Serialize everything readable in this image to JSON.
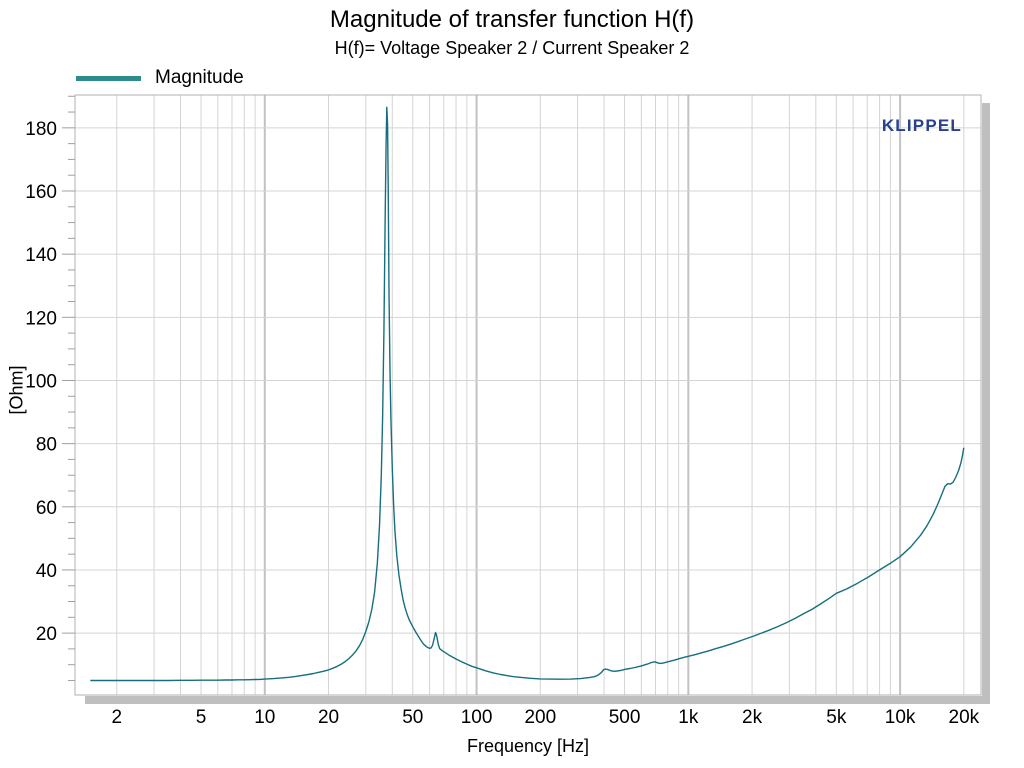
{
  "title": "Magnitude of transfer function H(f)",
  "subtitle": "H(f)= Voltage Speaker 2 / Current Speaker 2",
  "watermark": "KLIPPEL",
  "legend": [
    {
      "label": "Magnitude",
      "color": "#2e8b8b"
    }
  ],
  "colors": {
    "series": "#176f7e",
    "legend_swatch": "#2e8b8b",
    "grid_minor": "#d4d4d4",
    "grid_major": "#c2c2c2",
    "frame": "#b0b0b0",
    "tick": "#a0a0a0",
    "shadow": "#bfbfbf",
    "watermark": "#27418c",
    "text": "#000000",
    "background": "#ffffff"
  },
  "chart_data": {
    "type": "line",
    "title": "Magnitude of transfer function H(f)",
    "subtitle": "H(f)= Voltage Speaker 2 / Current Speaker 2",
    "xlabel": "Frequency [Hz]",
    "ylabel": "[Ohm]",
    "x_scale": "log",
    "grid": true,
    "legend_position": "top-left",
    "xlim": [
      1.27,
      24100
    ],
    "ylim": [
      0.4,
      190.4
    ],
    "x_ticks": [
      {
        "f": 2,
        "label": "2"
      },
      {
        "f": 5,
        "label": "5"
      },
      {
        "f": 10,
        "label": "10"
      },
      {
        "f": 20,
        "label": "20"
      },
      {
        "f": 50,
        "label": "50"
      },
      {
        "f": 100,
        "label": "100"
      },
      {
        "f": 200,
        "label": "200"
      },
      {
        "f": 500,
        "label": "500"
      },
      {
        "f": 1000,
        "label": "1k"
      },
      {
        "f": 2000,
        "label": "2k"
      },
      {
        "f": 5000,
        "label": "5k"
      },
      {
        "f": 10000,
        "label": "10k"
      },
      {
        "f": 20000,
        "label": "20k"
      }
    ],
    "y_ticks": [
      20,
      40,
      60,
      80,
      100,
      120,
      140,
      160,
      180
    ],
    "y_minor_step": 5,
    "series": [
      {
        "name": "Magnitude",
        "color": "#176f7e",
        "peak": {
          "frequency_hz": 37.7,
          "magnitude_ohm": 186.5
        },
        "points": [
          [
            1.5,
            5
          ],
          [
            2,
            5
          ],
          [
            2.5,
            5
          ],
          [
            3,
            5
          ],
          [
            3.5,
            5
          ],
          [
            4,
            5.05
          ],
          [
            4.5,
            5.05
          ],
          [
            5,
            5.1
          ],
          [
            5.5,
            5.1
          ],
          [
            6,
            5.1
          ],
          [
            6.5,
            5.15
          ],
          [
            7,
            5.15
          ],
          [
            7.5,
            5.2
          ],
          [
            8,
            5.2
          ],
          [
            8.5,
            5.25
          ],
          [
            9,
            5.3
          ],
          [
            9.5,
            5.35
          ],
          [
            10,
            5.45
          ],
          [
            11,
            5.6
          ],
          [
            12,
            5.8
          ],
          [
            13,
            6
          ],
          [
            14,
            6.3
          ],
          [
            15,
            6.6
          ],
          [
            16,
            6.9
          ],
          [
            17,
            7.2
          ],
          [
            18,
            7.6
          ],
          [
            19,
            7.95
          ],
          [
            20,
            8.35
          ],
          [
            21,
            8.9
          ],
          [
            22,
            9.5
          ],
          [
            23,
            10.2
          ],
          [
            24,
            11
          ],
          [
            25,
            12
          ],
          [
            26,
            13.1
          ],
          [
            27,
            14.4
          ],
          [
            28,
            16
          ],
          [
            29,
            18
          ],
          [
            30,
            20.5
          ],
          [
            31,
            23.5
          ],
          [
            32,
            27.5
          ],
          [
            33,
            33
          ],
          [
            34,
            42
          ],
          [
            34.8,
            54
          ],
          [
            35.5,
            70
          ],
          [
            36,
            88
          ],
          [
            36.5,
            115
          ],
          [
            37,
            150
          ],
          [
            37.4,
            175
          ],
          [
            37.7,
            186.5
          ],
          [
            38,
            181
          ],
          [
            38.3,
            158
          ],
          [
            38.6,
            128
          ],
          [
            39,
            103
          ],
          [
            39.4,
            88
          ],
          [
            40,
            72
          ],
          [
            40.6,
            60
          ],
          [
            41.2,
            52
          ],
          [
            42,
            44.5
          ],
          [
            43,
            38.5
          ],
          [
            44,
            34
          ],
          [
            45,
            30.5
          ],
          [
            46,
            28
          ],
          [
            47,
            26
          ],
          [
            48,
            24.3
          ],
          [
            49,
            23.1
          ],
          [
            50,
            22
          ],
          [
            52,
            20
          ],
          [
            54,
            18.2
          ],
          [
            56,
            16.6
          ],
          [
            58,
            15.7
          ],
          [
            59,
            15.4
          ],
          [
            60,
            15.2
          ],
          [
            61,
            15.3
          ],
          [
            62,
            16.2
          ],
          [
            63,
            18.2
          ],
          [
            64,
            20.2
          ],
          [
            64.5,
            19.7
          ],
          [
            65,
            18.8
          ],
          [
            66,
            16.4
          ],
          [
            67,
            15.1
          ],
          [
            68,
            14.7
          ],
          [
            70,
            14.1
          ],
          [
            72,
            13.6
          ],
          [
            75,
            12.8
          ],
          [
            80,
            11.8
          ],
          [
            85,
            10.9
          ],
          [
            90,
            10.2
          ],
          [
            95,
            9.5
          ],
          [
            100,
            9
          ],
          [
            110,
            8.1
          ],
          [
            120,
            7.4
          ],
          [
            130,
            6.9
          ],
          [
            140,
            6.5
          ],
          [
            150,
            6.2
          ],
          [
            165,
            5.9
          ],
          [
            180,
            5.7
          ],
          [
            200,
            5.5
          ],
          [
            220,
            5.45
          ],
          [
            250,
            5.4
          ],
          [
            280,
            5.45
          ],
          [
            310,
            5.6
          ],
          [
            340,
            5.9
          ],
          [
            360,
            6.2
          ],
          [
            375,
            6.7
          ],
          [
            388,
            7.5
          ],
          [
            398,
            8.4
          ],
          [
            405,
            8.6
          ],
          [
            415,
            8.5
          ],
          [
            430,
            8.1
          ],
          [
            445,
            7.9
          ],
          [
            460,
            8
          ],
          [
            480,
            8.2
          ],
          [
            500,
            8.5
          ],
          [
            530,
            8.8
          ],
          [
            560,
            9.1
          ],
          [
            600,
            9.6
          ],
          [
            640,
            10.2
          ],
          [
            670,
            10.7
          ],
          [
            695,
            10.9
          ],
          [
            715,
            10.6
          ],
          [
            735,
            10.4
          ],
          [
            760,
            10.5
          ],
          [
            800,
            10.9
          ],
          [
            845,
            11.3
          ],
          [
            890,
            11.75
          ],
          [
            940,
            12.2
          ],
          [
            1000,
            12.65
          ],
          [
            1080,
            13.2
          ],
          [
            1160,
            13.8
          ],
          [
            1250,
            14.4
          ],
          [
            1350,
            15.1
          ],
          [
            1450,
            15.7
          ],
          [
            1550,
            16.3
          ],
          [
            1700,
            17.2
          ],
          [
            1850,
            18.1
          ],
          [
            2000,
            18.9
          ],
          [
            2200,
            19.9
          ],
          [
            2400,
            20.9
          ],
          [
            2650,
            22.1
          ],
          [
            2900,
            23.3
          ],
          [
            3200,
            24.7
          ],
          [
            3500,
            26.1
          ],
          [
            3850,
            27.6
          ],
          [
            4200,
            29.2
          ],
          [
            4600,
            30.9
          ],
          [
            5000,
            32.6
          ],
          [
            5600,
            34
          ],
          [
            6300,
            35.8
          ],
          [
            7100,
            37.8
          ],
          [
            7900,
            39.8
          ],
          [
            8900,
            41.9
          ],
          [
            10000,
            44.2
          ],
          [
            11200,
            47.2
          ],
          [
            12500,
            51
          ],
          [
            13400,
            54
          ],
          [
            14300,
            57.5
          ],
          [
            15100,
            61
          ],
          [
            15800,
            64.3
          ],
          [
            16300,
            66.5
          ],
          [
            16800,
            67.3
          ],
          [
            17300,
            67.2
          ],
          [
            17800,
            67.8
          ],
          [
            18300,
            69.3
          ],
          [
            18900,
            71.5
          ],
          [
            19400,
            74
          ],
          [
            19700,
            76.3
          ],
          [
            20000,
            78.7
          ]
        ]
      }
    ]
  }
}
